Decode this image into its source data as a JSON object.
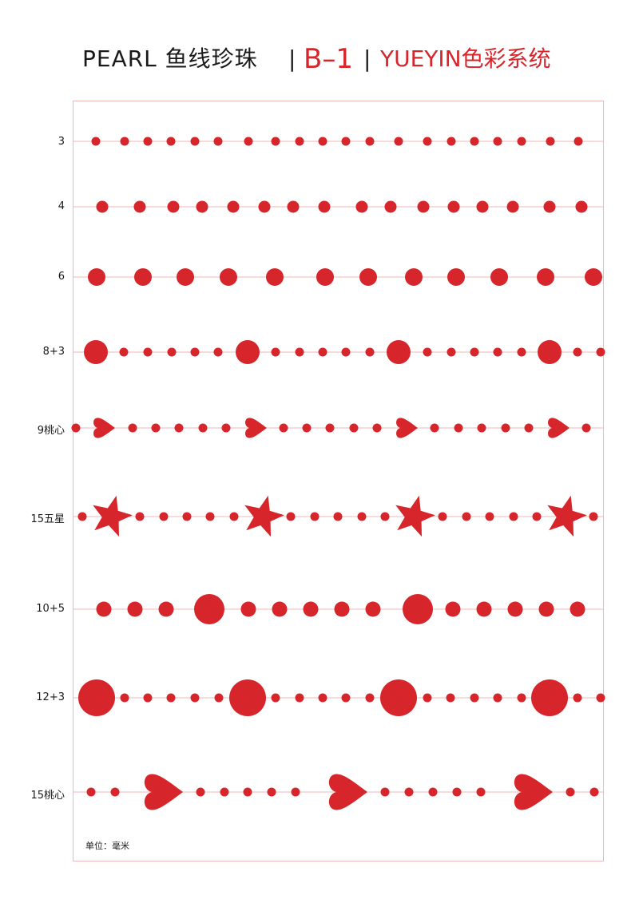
{
  "header": {
    "pearl": "PEARL 鱼线珍珠",
    "sep1": "|",
    "code": "B–1",
    "sep2": "|",
    "brand": "YUEYIN色彩系统"
  },
  "colors": {
    "bead": "#d7262b",
    "line": "#f0b8b8",
    "text": "#1a1a1a"
  },
  "rows": [
    {
      "label": "3"
    },
    {
      "label": "4"
    },
    {
      "label": "6"
    },
    {
      "label": "8+3"
    },
    {
      "label": "9桃心"
    },
    {
      "label": "15五星"
    },
    {
      "label": "10+5"
    },
    {
      "label": "12+3"
    },
    {
      "label": "15桃心"
    }
  ],
  "footer": {
    "unit": "单位：毫米"
  }
}
